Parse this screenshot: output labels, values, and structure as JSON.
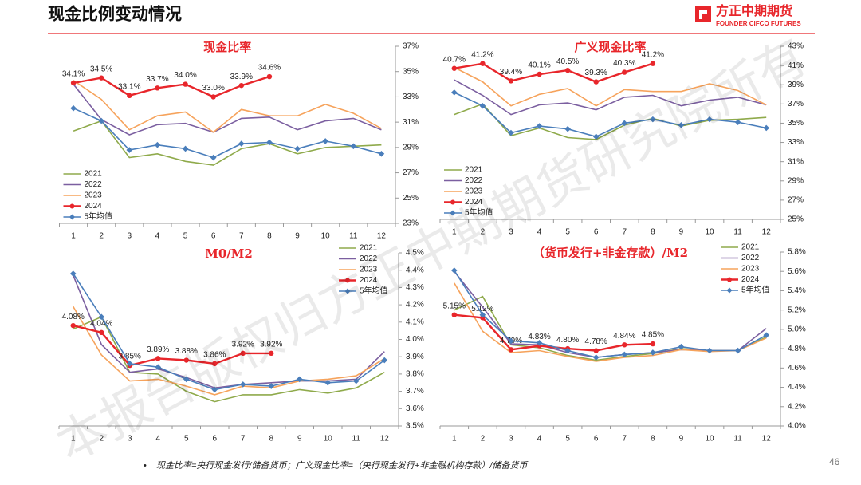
{
  "header": {
    "title": "现金比例变动情况",
    "logo_name": "方正中期期货",
    "logo_sub": "FOUNDER CIFCO FUTURES"
  },
  "footnote": "现金比率=央行现金发行/储备货币；广义现金比率=（央行现金发行+非金融机构存款）/储备货币",
  "page_number": "46",
  "watermark": "本报告版权归方正中期期货研究院所有",
  "chart_data": [
    {
      "type": "line",
      "title": "现金比率",
      "categories": [
        "1",
        "2",
        "3",
        "4",
        "5",
        "6",
        "7",
        "8",
        "9",
        "10",
        "11",
        "12"
      ],
      "ylim": [
        23,
        37
      ],
      "yticks": [
        {
          "value": 23,
          "label": "23%"
        },
        {
          "value": 25,
          "label": "25%"
        },
        {
          "value": 27,
          "label": "27%"
        },
        {
          "value": 29,
          "label": "29%"
        },
        {
          "value": 31,
          "label": "31%"
        },
        {
          "value": 33,
          "label": "33%"
        },
        {
          "value": 35,
          "label": "35%"
        },
        {
          "value": 37,
          "label": "37%"
        }
      ],
      "y_axis_side": "right",
      "legend": "lower left",
      "series": [
        {
          "name": "2021",
          "color": "#8faa4b",
          "values": [
            30.3,
            31.1,
            28.2,
            28.5,
            27.9,
            27.6,
            28.9,
            29.3,
            28.5,
            29.0,
            29.1,
            29.2
          ]
        },
        {
          "name": "2022",
          "color": "#7b5fa0",
          "values": [
            34.0,
            31.2,
            30.0,
            30.8,
            30.9,
            30.2,
            31.3,
            31.4,
            30.4,
            31.1,
            31.3,
            30.4
          ]
        },
        {
          "name": "2023",
          "color": "#f6a35c",
          "values": [
            34.3,
            32.8,
            30.4,
            31.5,
            31.8,
            30.2,
            32.0,
            31.5,
            31.5,
            32.4,
            31.7,
            30.5
          ]
        },
        {
          "name": "2024",
          "color": "#e8262b",
          "marker": "circle",
          "values": [
            34.1,
            34.5,
            33.1,
            33.7,
            34.0,
            33.0,
            33.9,
            34.6,
            null,
            null,
            null,
            null
          ],
          "value_labels": [
            "34.1%",
            "34.5%",
            "33.1%",
            "33.7%",
            "34.0%",
            "33.0%",
            "33.9%",
            "34.6%",
            null,
            null,
            null,
            null
          ]
        },
        {
          "name": "5年均值",
          "color": "#4a7ebb",
          "marker": "diamond",
          "values": [
            32.1,
            31.1,
            28.8,
            29.2,
            28.9,
            28.2,
            29.3,
            29.4,
            28.9,
            29.5,
            29.1,
            28.5
          ]
        }
      ]
    },
    {
      "type": "line",
      "title": "广义现金比率",
      "categories": [
        "1",
        "2",
        "3",
        "4",
        "5",
        "6",
        "7",
        "8",
        "9",
        "10",
        "11",
        "12"
      ],
      "ylim": [
        25,
        43
      ],
      "yticks": [
        {
          "value": 25,
          "label": "25%"
        },
        {
          "value": 27,
          "label": "27%"
        },
        {
          "value": 29,
          "label": "29%"
        },
        {
          "value": 31,
          "label": "31%"
        },
        {
          "value": 33,
          "label": "33%"
        },
        {
          "value": 35,
          "label": "35%"
        },
        {
          "value": 37,
          "label": "37%"
        },
        {
          "value": 39,
          "label": "39%"
        },
        {
          "value": 41,
          "label": "41%"
        },
        {
          "value": 43,
          "label": "43%"
        }
      ],
      "y_axis_side": "right",
      "legend": "lower left",
      "series": [
        {
          "name": "2021",
          "color": "#8faa4b",
          "values": [
            35.9,
            37.0,
            33.7,
            34.5,
            33.5,
            33.3,
            34.8,
            35.5,
            34.7,
            35.3,
            35.4,
            35.6
          ]
        },
        {
          "name": "2022",
          "color": "#7b5fa0",
          "values": [
            39.5,
            37.9,
            35.9,
            36.9,
            37.1,
            36.4,
            37.7,
            37.9,
            36.8,
            37.4,
            37.7,
            36.9
          ]
        },
        {
          "name": "2023",
          "color": "#f6a35c",
          "values": [
            40.8,
            39.3,
            36.8,
            38.0,
            38.6,
            36.8,
            38.5,
            38.3,
            38.3,
            39.1,
            38.4,
            36.9
          ]
        },
        {
          "name": "2024",
          "color": "#e8262b",
          "marker": "circle",
          "values": [
            40.7,
            41.2,
            39.4,
            40.1,
            40.5,
            39.3,
            40.3,
            41.2,
            null,
            null,
            null,
            null
          ],
          "value_labels": [
            "40.7%",
            "41.2%",
            "39.4%",
            "40.1%",
            "40.5%",
            "39.3%",
            "40.3%",
            "41.2%",
            null,
            null,
            null,
            null
          ]
        },
        {
          "name": "5年均值",
          "color": "#4a7ebb",
          "marker": "diamond",
          "values": [
            38.2,
            36.8,
            34.0,
            34.7,
            34.4,
            33.6,
            35.0,
            35.4,
            34.8,
            35.4,
            35.1,
            34.5
          ]
        }
      ]
    },
    {
      "type": "line",
      "title": "M0/M2",
      "categories": [
        "1",
        "2",
        "3",
        "4",
        "5",
        "6",
        "7",
        "8",
        "9",
        "10",
        "11",
        "12"
      ],
      "ylim": [
        3.5,
        4.5
      ],
      "yticks": [
        {
          "value": 3.5,
          "label": "3.5%"
        },
        {
          "value": 3.6,
          "label": "3.6%"
        },
        {
          "value": 3.7,
          "label": "3.7%"
        },
        {
          "value": 3.8,
          "label": "3.8%"
        },
        {
          "value": 3.9,
          "label": "3.9%"
        },
        {
          "value": 4.0,
          "label": "4.0%"
        },
        {
          "value": 4.1,
          "label": "4.1%"
        },
        {
          "value": 4.2,
          "label": "4.2%"
        },
        {
          "value": 4.3,
          "label": "4.3%"
        },
        {
          "value": 4.4,
          "label": "4.4%"
        },
        {
          "value": 4.5,
          "label": "4.5%"
        }
      ],
      "y_axis_side": "right",
      "legend": "upper right",
      "series": [
        {
          "name": "2021",
          "color": "#8faa4b",
          "values": [
            4.06,
            4.13,
            3.81,
            3.8,
            3.7,
            3.64,
            3.68,
            3.68,
            3.71,
            3.69,
            3.72,
            3.81
          ]
        },
        {
          "name": "2022",
          "color": "#7b5fa0",
          "values": [
            4.37,
            3.97,
            3.81,
            3.83,
            3.78,
            3.72,
            3.74,
            3.75,
            3.76,
            3.76,
            3.77,
            3.93
          ]
        },
        {
          "name": "2023",
          "color": "#f6a35c",
          "values": [
            4.19,
            3.91,
            3.76,
            3.77,
            3.73,
            3.68,
            3.73,
            3.72,
            3.76,
            3.77,
            3.79,
            3.89
          ]
        },
        {
          "name": "2024",
          "color": "#e8262b",
          "marker": "circle",
          "values": [
            4.08,
            4.04,
            3.85,
            3.89,
            3.88,
            3.86,
            3.92,
            3.92,
            null,
            null,
            null,
            null
          ],
          "value_labels": [
            "4.08%",
            "4.04%",
            "3.85%",
            "3.89%",
            "3.88%",
            "3.86%",
            "3.92%",
            "3.92%",
            null,
            null,
            null,
            null
          ]
        },
        {
          "name": "5年均值",
          "color": "#4a7ebb",
          "marker": "diamond",
          "values": [
            4.38,
            4.13,
            3.86,
            3.84,
            3.77,
            3.71,
            3.74,
            3.73,
            3.77,
            3.75,
            3.76,
            3.88
          ]
        }
      ]
    },
    {
      "type": "line",
      "title": "（货币发行+非金存款）/M2",
      "categories": [
        "1",
        "2",
        "3",
        "4",
        "5",
        "6",
        "7",
        "8",
        "9",
        "10",
        "11",
        "12"
      ],
      "ylim": [
        4.0,
        5.8
      ],
      "yticks": [
        {
          "value": 4.0,
          "label": "4.0%"
        },
        {
          "value": 4.2,
          "label": "4.2%"
        },
        {
          "value": 4.4,
          "label": "4.4%"
        },
        {
          "value": 4.6,
          "label": "4.6%"
        },
        {
          "value": 4.8,
          "label": "4.8%"
        },
        {
          "value": 5.0,
          "label": "5.0%"
        },
        {
          "value": 5.2,
          "label": "5.2%"
        },
        {
          "value": 5.4,
          "label": "5.4%"
        },
        {
          "value": 5.6,
          "label": "5.6%"
        },
        {
          "value": 5.8,
          "label": "5.8%"
        }
      ],
      "y_axis_side": "right",
      "legend": "upper right",
      "series": [
        {
          "name": "2021",
          "color": "#8faa4b",
          "values": [
            5.2,
            5.34,
            4.84,
            4.81,
            4.73,
            4.68,
            4.72,
            4.75,
            4.8,
            4.78,
            4.78,
            4.92
          ]
        },
        {
          "name": "2022",
          "color": "#7b5fa0",
          "values": [
            5.6,
            5.23,
            4.85,
            4.84,
            4.76,
            4.71,
            4.74,
            4.76,
            4.79,
            4.78,
            4.78,
            5.01
          ]
        },
        {
          "name": "2023",
          "color": "#f6a35c",
          "values": [
            5.48,
            4.98,
            4.76,
            4.78,
            4.72,
            4.67,
            4.71,
            4.73,
            4.79,
            4.77,
            4.78,
            4.91
          ]
        },
        {
          "name": "2024",
          "color": "#e8262b",
          "marker": "circle",
          "values": [
            5.15,
            5.12,
            4.79,
            4.83,
            4.8,
            4.78,
            4.84,
            4.85,
            null,
            null,
            null,
            null
          ],
          "value_labels": [
            "5.15%",
            "5.12%",
            "4.79%",
            "4.83%",
            "4.80%",
            "4.78%",
            "4.84%",
            "4.85%",
            null,
            null,
            null,
            null
          ]
        },
        {
          "name": "5年均值",
          "color": "#4a7ebb",
          "marker": "diamond",
          "values": [
            5.61,
            5.15,
            4.88,
            4.86,
            4.78,
            4.71,
            4.74,
            4.76,
            4.82,
            4.78,
            4.78,
            4.94
          ]
        }
      ]
    }
  ]
}
